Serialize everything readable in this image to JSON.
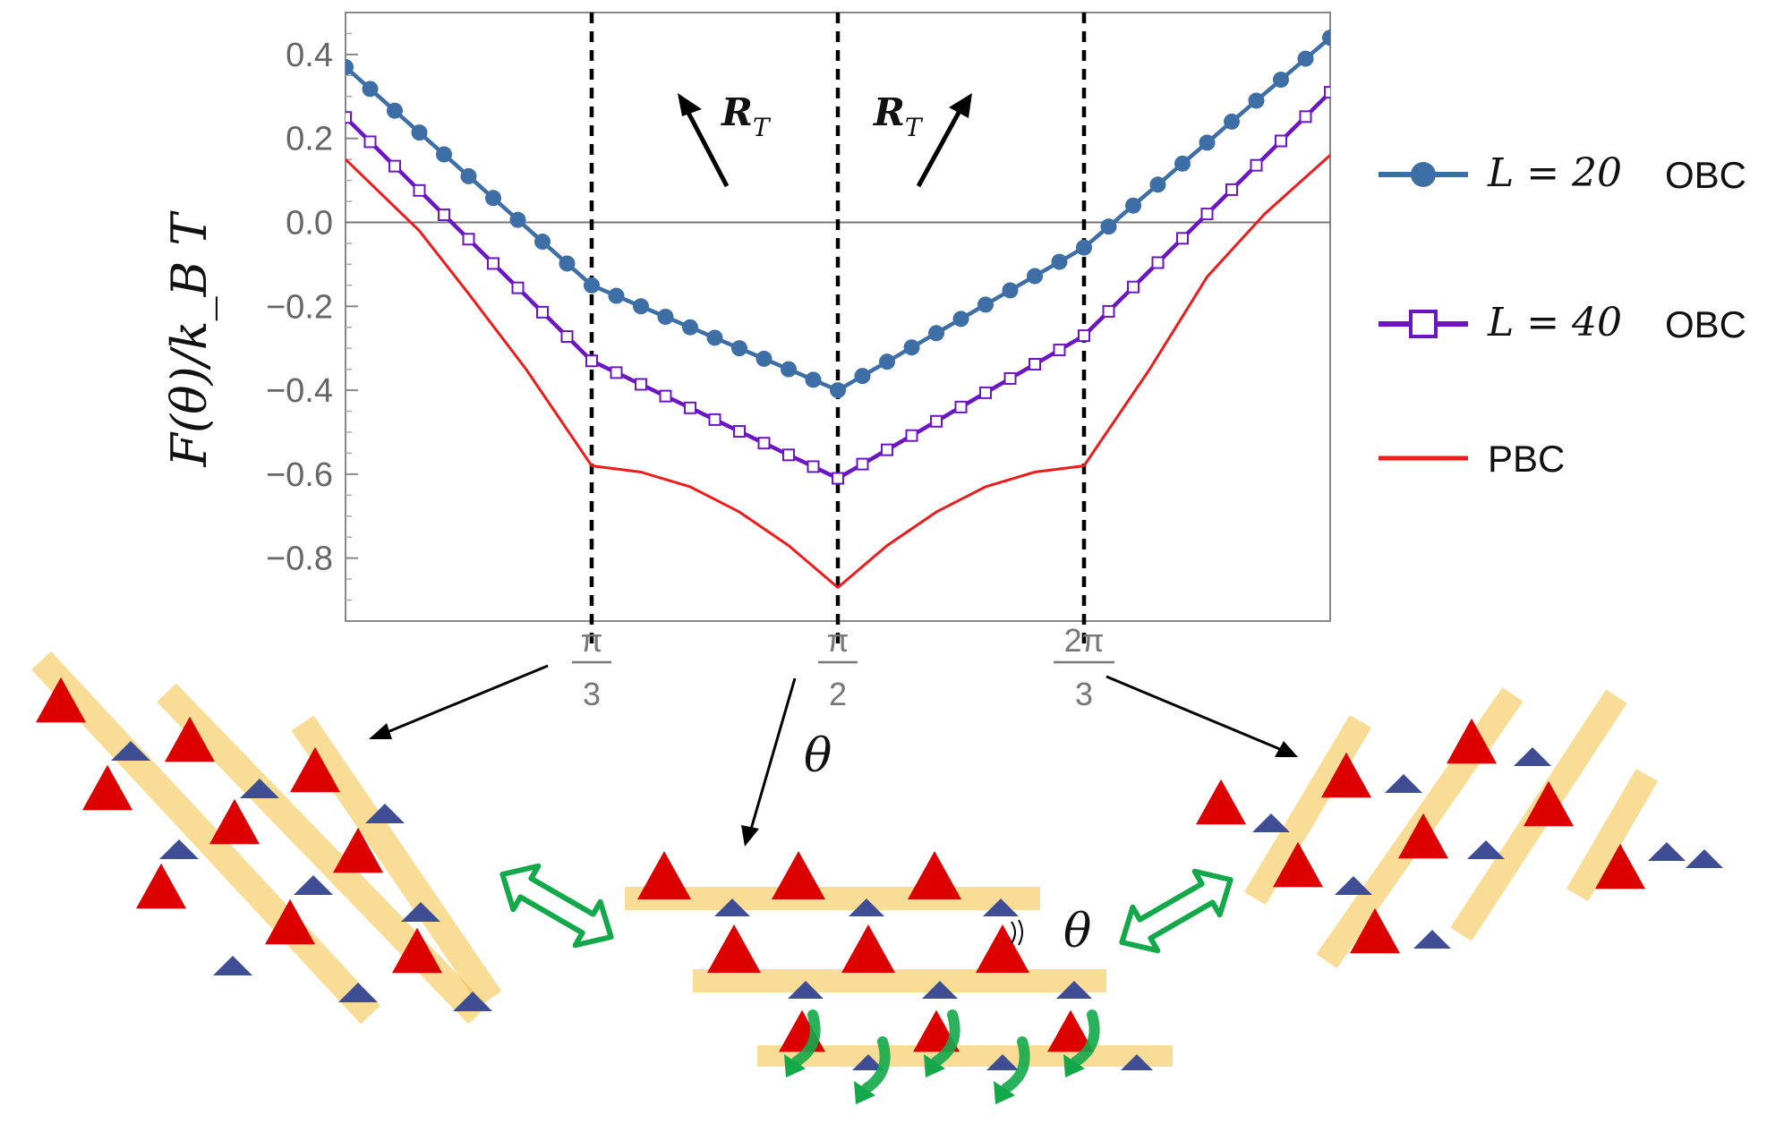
{
  "chart_data": {
    "type": "line",
    "ylabel": "F(θ)/k_B T",
    "xlabel": "θ",
    "ylim": [
      -0.95,
      0.5
    ],
    "xlim_deg": [
      30,
      150
    ],
    "yticks": [
      "0.4",
      "0.2",
      "0.0",
      "−0.2",
      "−0.4",
      "−0.6",
      "−0.8"
    ],
    "ytick_values": [
      0.4,
      0.2,
      0.0,
      -0.2,
      -0.4,
      -0.6,
      -0.8
    ],
    "xticks": [
      {
        "deg": 60,
        "num": "π",
        "den": "3"
      },
      {
        "deg": 90,
        "num": "π",
        "den": "2"
      },
      {
        "deg": 120,
        "num": "2π",
        "den": "3"
      }
    ],
    "vlines_deg": [
      60,
      90,
      120
    ],
    "hline": 0.0,
    "annotations": {
      "rt_label": "R",
      "rt_sub": "T",
      "theta": "θ"
    },
    "series": [
      {
        "name": "L = 20 OBC",
        "legend_math": "L = 20",
        "legend_tag": "OBC",
        "color": "#3d6fa6",
        "marker": "circle",
        "x_deg": [
          30,
          60,
          90,
          120,
          150
        ],
        "y": [
          0.37,
          -0.15,
          -0.4,
          -0.06,
          0.44
        ]
      },
      {
        "name": "L = 40 OBC",
        "legend_math": "L = 40",
        "legend_tag": "OBC",
        "color": "#6a16c2",
        "marker": "square",
        "x_deg": [
          30,
          60,
          90,
          120,
          150
        ],
        "y": [
          0.25,
          -0.33,
          -0.61,
          -0.27,
          0.31
        ]
      },
      {
        "name": "PBC",
        "legend_math": "",
        "legend_tag": "PBC",
        "color": "#ee1b1b",
        "marker": "none",
        "x_deg": [
          30,
          39,
          45,
          52,
          60,
          66,
          72,
          78,
          84,
          90,
          96,
          102,
          108,
          114,
          120,
          128,
          135,
          142,
          150
        ],
        "y": [
          0.15,
          -0.02,
          -0.17,
          -0.35,
          -0.58,
          -0.595,
          -0.63,
          -0.69,
          -0.77,
          -0.87,
          -0.77,
          -0.69,
          -0.63,
          -0.595,
          -0.58,
          -0.35,
          -0.13,
          0.02,
          0.16
        ]
      }
    ]
  }
}
